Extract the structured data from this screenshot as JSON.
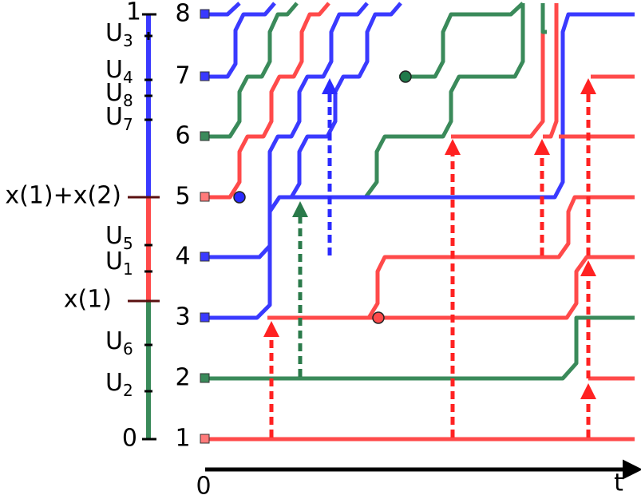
{
  "scale_labels": [
    {
      "text": "1"
    },
    {
      "text": "U",
      "sub": "3"
    },
    {
      "text": "U",
      "sub": "4"
    },
    {
      "text": "U",
      "sub": "8"
    },
    {
      "text": "U",
      "sub": "7"
    },
    {
      "text": "x(1)+x(2)"
    },
    {
      "text": "U",
      "sub": "5"
    },
    {
      "text": "U",
      "sub": "1"
    },
    {
      "text": "x(1)"
    },
    {
      "text": "U",
      "sub": "6"
    },
    {
      "text": "U",
      "sub": "2"
    },
    {
      "text": "0"
    }
  ],
  "levels": [
    "8",
    "7",
    "6",
    "5",
    "4",
    "3",
    "2",
    "1"
  ],
  "time_axis": {
    "origin": "0",
    "label": "t"
  }
}
